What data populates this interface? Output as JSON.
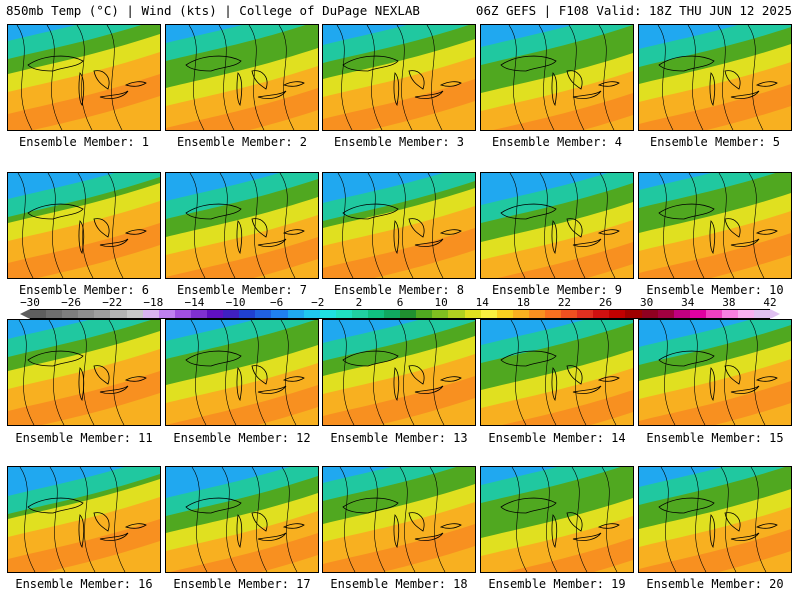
{
  "header": {
    "left": "850mb Temp (°C) | Wind (kts) | College of DuPage NEXLAB",
    "right": "06Z GEFS | F108 Valid: 18Z THU JUN 12 2025"
  },
  "panels": [
    {
      "label": "Ensemble Member: 1"
    },
    {
      "label": "Ensemble Member: 2"
    },
    {
      "label": "Ensemble Member: 3"
    },
    {
      "label": "Ensemble Member: 4"
    },
    {
      "label": "Ensemble Member: 5"
    },
    {
      "label": "Ensemble Member: 6"
    },
    {
      "label": "Ensemble Member: 7"
    },
    {
      "label": "Ensemble Member: 8"
    },
    {
      "label": "Ensemble Member: 9"
    },
    {
      "label": "Ensemble Member: 10"
    },
    {
      "label": "Ensemble Member: 11"
    },
    {
      "label": "Ensemble Member: 12"
    },
    {
      "label": "Ensemble Member: 13"
    },
    {
      "label": "Ensemble Member: 14"
    },
    {
      "label": "Ensemble Member: 15"
    },
    {
      "label": "Ensemble Member: 16"
    },
    {
      "label": "Ensemble Member: 17"
    },
    {
      "label": "Ensemble Member: 18"
    },
    {
      "label": "Ensemble Member: 19"
    },
    {
      "label": "Ensemble Member: 20"
    }
  ],
  "colorbar": {
    "ticks": [
      "−30",
      "−26",
      "−22",
      "−18",
      "−14",
      "−10",
      "−6",
      "−2",
      "2",
      "6",
      "10",
      "14",
      "18",
      "22",
      "26",
      "30",
      "34",
      "38",
      "42"
    ],
    "colors": [
      "#5e5e5e",
      "#6e6e6e",
      "#7e7e7e",
      "#8e8e8e",
      "#9e9e9e",
      "#b4b4b4",
      "#c8c8c8",
      "#d8b4f0",
      "#c080f0",
      "#a050e0",
      "#8030d0",
      "#6010c0",
      "#4020c0",
      "#2040d0",
      "#2060e0",
      "#2080f0",
      "#20a8f0",
      "#20c8f0",
      "#20e0e0",
      "#20e0c0",
      "#20d0a0",
      "#10c080",
      "#10a860",
      "#209030",
      "#50a820",
      "#80c020",
      "#b0d020",
      "#e0e020",
      "#f8f040",
      "#f8d020",
      "#f8b020",
      "#f89020",
      "#f87020",
      "#f05020",
      "#e03020",
      "#d01010",
      "#c00000",
      "#a00000",
      "#900020",
      "#a00040",
      "#c00080",
      "#e000a0",
      "#f040c0",
      "#f880e0",
      "#f8b0f0",
      "#e0c0f0"
    ]
  },
  "colors": {
    "cold": "#20a8f0",
    "cool": "#20c8a0",
    "mild": "#50a820",
    "warm": "#e0e020",
    "hot": "#f8b020",
    "hotter": "#f89020",
    "land_outline": "#000000"
  }
}
